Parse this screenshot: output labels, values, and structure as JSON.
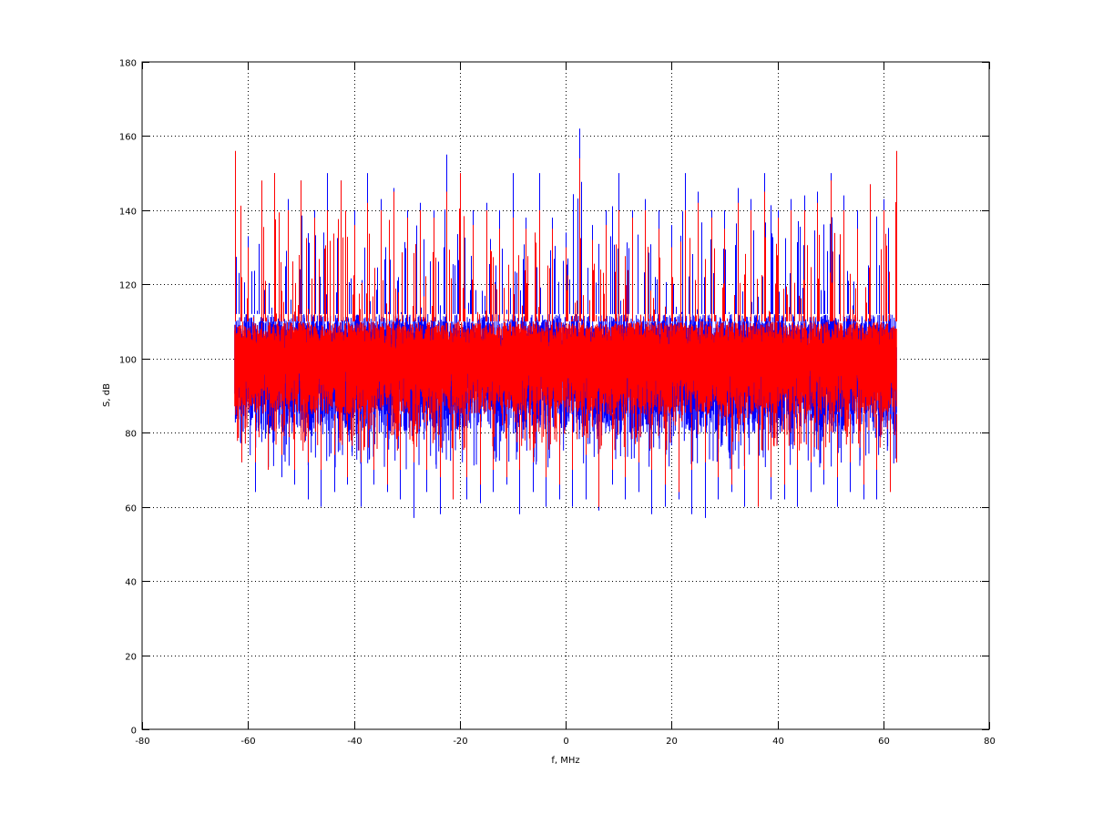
{
  "chart_data": {
    "type": "line",
    "title": "",
    "xlabel": "f, MHz",
    "ylabel": "S, dB",
    "xlim": [
      -80,
      80
    ],
    "ylim": [
      0,
      180
    ],
    "xticks": [
      -80,
      -60,
      -40,
      -20,
      0,
      20,
      40,
      60,
      80
    ],
    "yticks": [
      0,
      20,
      40,
      60,
      80,
      100,
      120,
      140,
      160,
      180
    ],
    "grid": true,
    "legend": "none",
    "f_range": [
      -62.5,
      62.5
    ],
    "series": [
      {
        "color": "#0000ff",
        "noise_band": [
          80,
          112
        ],
        "peak_max": [
          150,
          133,
          146,
          150,
          143,
          148,
          140,
          150,
          148,
          140,
          150,
          143,
          146,
          140,
          142,
          140,
          155,
          150,
          140,
          142,
          140,
          150,
          138,
          150,
          138,
          134,
          162,
          136,
          140,
          150,
          140,
          143,
          140,
          136,
          150,
          145,
          140,
          140,
          146,
          143,
          150,
          140,
          143,
          144,
          145,
          150,
          144,
          140,
          147,
          143,
          150
        ],
        "peak_min": [
          72,
          64,
          70,
          68,
          66,
          62,
          60,
          64,
          66,
          60,
          66,
          64,
          62,
          57,
          64,
          58,
          63,
          62,
          61,
          64,
          66,
          58,
          64,
          60,
          62,
          60,
          62,
          59,
          66,
          62,
          64,
          58,
          60,
          62,
          58,
          57,
          62,
          64,
          60,
          63,
          62,
          62,
          60,
          64,
          66,
          60,
          64,
          62,
          62,
          66,
          72
        ]
      },
      {
        "color": "#ff0000",
        "noise_band": [
          85,
          110
        ],
        "peak_max": [
          156,
          130,
          148,
          150,
          140,
          148,
          138,
          140,
          148,
          136,
          142,
          140,
          145,
          138,
          140,
          138,
          145,
          150,
          136,
          140,
          135,
          138,
          135,
          140,
          135,
          130,
          154,
          132,
          136,
          140,
          138,
          140,
          135,
          130,
          140,
          142,
          138,
          135,
          142,
          140,
          145,
          138,
          140,
          140,
          142,
          148,
          140,
          135,
          147,
          140,
          156
        ],
        "peak_min": [
          72,
          72,
          70,
          74,
          70,
          72,
          70,
          74,
          68,
          72,
          70,
          66,
          70,
          72,
          70,
          68,
          62,
          68,
          66,
          70,
          68,
          70,
          72,
          68,
          66,
          70,
          74,
          60,
          70,
          68,
          72,
          70,
          66,
          64,
          70,
          72,
          68,
          66,
          70,
          60,
          68,
          66,
          70,
          72,
          70,
          68,
          72,
          66,
          70,
          64,
          72
        ]
      }
    ]
  }
}
